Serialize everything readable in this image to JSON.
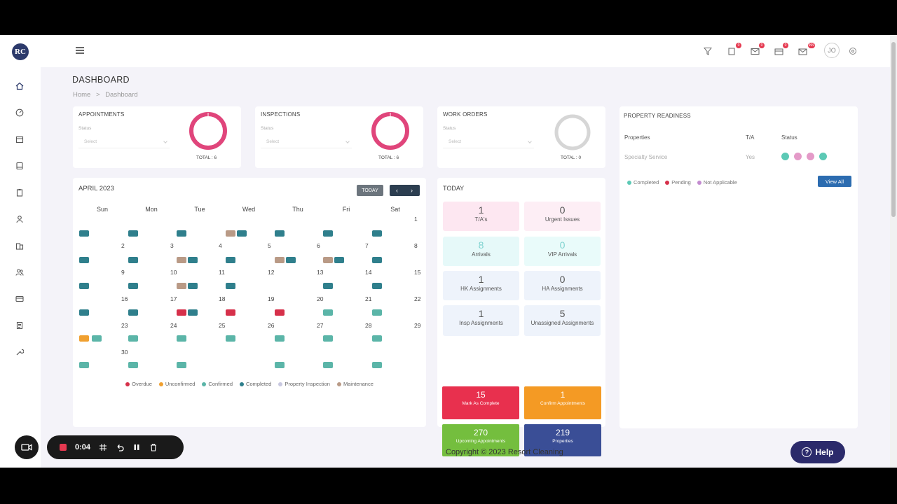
{
  "app": {
    "logo_text": "RC"
  },
  "header": {
    "user_initials": "JO",
    "badges": {
      "clipboard": "0",
      "envelope1": "0",
      "envelope2": "0",
      "mail": "999"
    }
  },
  "page": {
    "title": "DASHBOARD",
    "breadcrumb": [
      "Home",
      "Dashboard"
    ],
    "breadcrumb_separator": ">"
  },
  "summary_cards": [
    {
      "title": "APPOINTMENTS",
      "status_label": "Status",
      "select_value": "Select",
      "total_label": "TOTAL : 6",
      "ring_color": "#e0457b"
    },
    {
      "title": "INSPECTIONS",
      "status_label": "Status",
      "select_value": "Select",
      "total_label": "TOTAL : 6",
      "ring_color": "#e0457b"
    },
    {
      "title": "WORK ORDERS",
      "status_label": "Status",
      "select_value": "Select",
      "total_label": "TOTAL : 0",
      "ring_color": "#d6d6d6"
    }
  ],
  "calendar": {
    "month_label": "APRIL 2023",
    "today_label": "TODAY",
    "prev": "‹",
    "next": "›",
    "weekdays": [
      "Sun",
      "Mon",
      "Tue",
      "Wed",
      "Thu",
      "Fri",
      "Sat"
    ],
    "weeks": [
      [
        "",
        "",
        "",
        "",
        "",
        "",
        "1"
      ],
      [
        "2",
        "3",
        "4",
        "5",
        "6",
        "7",
        "8"
      ],
      [
        "9",
        "10",
        "11",
        "12",
        "13",
        "14",
        "15"
      ],
      [
        "16",
        "17",
        "18",
        "19",
        "20",
        "21",
        "22"
      ],
      [
        "23",
        "24",
        "25",
        "26",
        "27",
        "28",
        "29"
      ],
      [
        "30",
        "",
        "",
        "",
        "",
        "",
        ""
      ]
    ],
    "legend": [
      {
        "label": "Overdue",
        "color": "#d6304a"
      },
      {
        "label": "Unconfirmed",
        "color": "#f0a030"
      },
      {
        "label": "Confirmed",
        "color": "#5bb5a8"
      },
      {
        "label": "Completed",
        "color": "#2f7f8c"
      },
      {
        "label": "Property Inspection",
        "color": "#c8c8e0"
      },
      {
        "label": "Maintenance",
        "color": "#b99a86"
      }
    ]
  },
  "today_panel": {
    "title": "TODAY",
    "tiles": [
      {
        "value": "1",
        "label": "T/A's",
        "bg": "#fde7f1"
      },
      {
        "value": "0",
        "label": "Urgent Issues",
        "bg": "#fdeef5"
      },
      {
        "value": "8",
        "label": "Arrivals",
        "bg": "#e6f9f9",
        "value_color": "#7fd3d0"
      },
      {
        "value": "0",
        "label": "VIP Arrivals",
        "bg": "#e9fbfa",
        "value_color": "#7fd3d0"
      },
      {
        "value": "1",
        "label": "HK Assignments",
        "bg": "#eef3fb"
      },
      {
        "value": "0",
        "label": "HA Assignments",
        "bg": "#eef3fb"
      },
      {
        "value": "1",
        "label": "Insp Assignments",
        "bg": "#eef3fb"
      },
      {
        "value": "5",
        "label": "Unassigned Assignments",
        "bg": "#eef3fb"
      }
    ],
    "big_tiles": [
      {
        "value": "15",
        "label": "Mark As Complete",
        "bg": "#e8304e"
      },
      {
        "value": "1",
        "label": "Confirm Appointments",
        "bg": "#f49a24"
      },
      {
        "value": "270",
        "label": "Upcoming Appointments",
        "bg": "#74be3e"
      },
      {
        "value": "219",
        "label": "Properties",
        "bg": "#3a4e96"
      }
    ]
  },
  "property_readiness": {
    "title": "PROPERTY READINESS",
    "headers": [
      "Properties",
      "T/A",
      "Status"
    ],
    "rows": [
      {
        "property": "Specialty Service",
        "ta": "Yes"
      }
    ],
    "status_colors": [
      "#5cc9b5",
      "#e49ac8",
      "#e49ac8",
      "#5cc9b5"
    ],
    "legend": [
      {
        "label": "Completed",
        "color": "#5cc9b5"
      },
      {
        "label": "Pending",
        "color": "#d6304a"
      },
      {
        "label": "Not Applicable",
        "color": "#c38bd0"
      }
    ],
    "view_all": "View All"
  },
  "footer": {
    "copyright": "Copyright © 2023 Resort Cleaning",
    "help": "Help",
    "help_icon": "?"
  },
  "recorder": {
    "time": "0:04"
  }
}
